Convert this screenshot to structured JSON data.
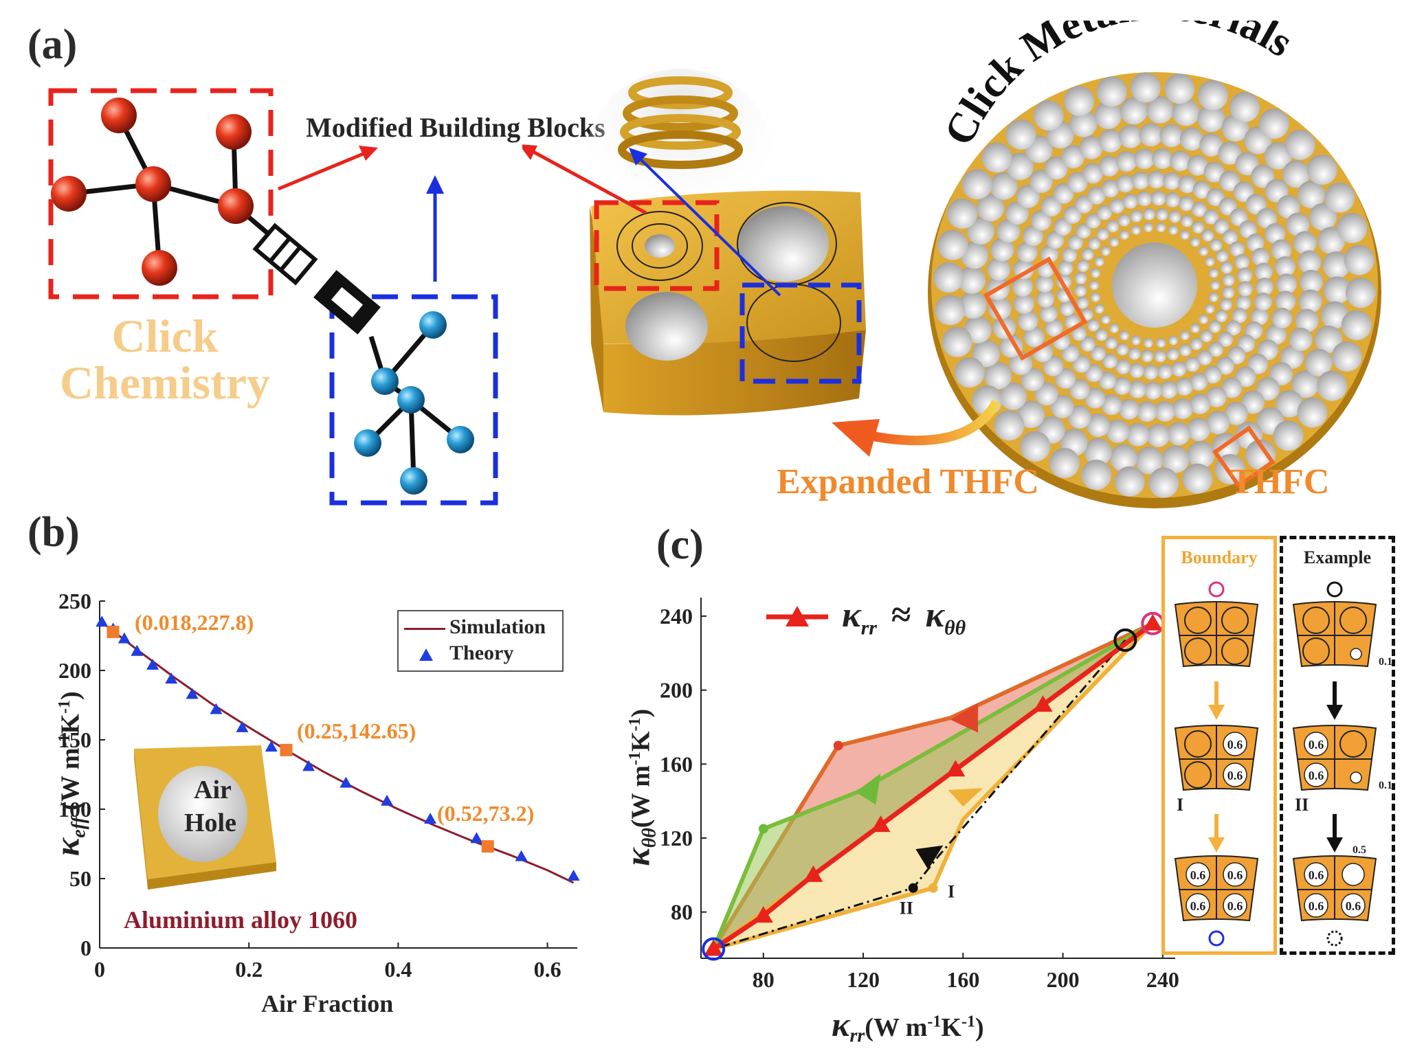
{
  "panel_a": {
    "label": "(a)",
    "click_line1": "Click",
    "click_line2": "Chemistry",
    "modified_blocks": "Modified Building Blocks",
    "click_metamaterials": "Click Metamaterials",
    "expanded_thfc": "Expanded THFC",
    "thfc": "THFC"
  },
  "panel_b": {
    "label": "(b)",
    "inset_text_1": "Air",
    "inset_text_2": "Hole",
    "material": "Aluminium alloy 1060",
    "legend_simulation": "Simulation",
    "legend_theory": "Theory",
    "ann1": "(0.018,227.8)",
    "ann2": "(0.25,142.65)",
    "ann3": "(0.52,73.2)",
    "xlabel": "Air Fraction",
    "ylabel_sym": "κ",
    "ylabel_sub": "eff",
    "ylabel_units": "(W m",
    "ylabel_exp1": "-1",
    "ylabel_k": "K",
    "ylabel_exp2": "-1",
    "ylabel_close": ")",
    "xticks": [
      "0",
      "0.2",
      "0.4",
      "0.6"
    ],
    "yticks": [
      "0",
      "50",
      "100",
      "150",
      "200",
      "250"
    ]
  },
  "panel_c": {
    "label": "(c)",
    "legend_lhs": "κ",
    "legend_lhs_sub": "rr",
    "legend_approx": "≈",
    "legend_rhs": "κ",
    "legend_rhs_sub": "θθ",
    "xlabel_sym": "κ",
    "xlabel_sub": "rr",
    "xlabel_units": "(W m",
    "xlabel_exp1": "-1",
    "xlabel_k": "K",
    "xlabel_exp2": "-1",
    "xlabel_close": ")",
    "ylabel_sym": "κ",
    "ylabel_sub": "θθ",
    "ylabel_units": "(W m",
    "ylabel_exp1": "-1",
    "ylabel_k": "K",
    "ylabel_exp2": "-1",
    "ylabel_close": ")",
    "xticks": [
      "80",
      "120",
      "160",
      "200",
      "240"
    ],
    "yticks": [
      "80",
      "120",
      "160",
      "200",
      "240"
    ],
    "marker_I": "I",
    "marker_II": "II",
    "boundary_title": "Boundary",
    "example_title": "Example",
    "cell_06": "0.6",
    "cell_01": "0.1",
    "cell_05": "0.5"
  },
  "colors": {
    "red_block": "#e8231c",
    "blue_block": "#1a2fe0",
    "gold": "#d9a62a",
    "orange": "#f08a2c",
    "sim_line": "#8c1d2e",
    "theory": "#1f3de0"
  },
  "chart_data": [
    {
      "type": "line",
      "xlabel": "Air Fraction",
      "ylabel": "κeff (W m-1K-1)",
      "xlim": [
        0,
        0.64
      ],
      "ylim": [
        0,
        250
      ],
      "series": [
        {
          "name": "Simulation",
          "kind": "line",
          "x": [
            0,
            0.05,
            0.1,
            0.15,
            0.2,
            0.25,
            0.3,
            0.35,
            0.4,
            0.45,
            0.5,
            0.55,
            0.6,
            0.635
          ],
          "y": [
            236,
            215,
            195,
            176,
            159,
            142.65,
            127,
            113,
            100,
            88,
            77,
            67,
            56,
            47
          ]
        },
        {
          "name": "Theory",
          "kind": "scatter",
          "x": [
            0.003,
            0.018,
            0.033,
            0.05,
            0.071,
            0.096,
            0.124,
            0.156,
            0.191,
            0.23,
            0.28,
            0.33,
            0.385,
            0.443,
            0.505,
            0.565,
            0.635
          ],
          "y": [
            235,
            230,
            223,
            214,
            204,
            194,
            183,
            172,
            159,
            145,
            131,
            119,
            106,
            93,
            79,
            66,
            52
          ]
        }
      ],
      "annotations": [
        {
          "x": 0.018,
          "y": 227.8,
          "text": "(0.018,227.8)"
        },
        {
          "x": 0.25,
          "y": 142.65,
          "text": "(0.25,142.65)"
        },
        {
          "x": 0.52,
          "y": 73.2,
          "text": "(0.52,73.2)"
        }
      ],
      "legend_position": "top-right"
    },
    {
      "type": "line",
      "xlabel": "κrr (W m-1K-1)",
      "ylabel": "κθθ (W m-1K-1)",
      "xlim": [
        55,
        245
      ],
      "ylim": [
        55,
        250
      ],
      "series": [
        {
          "name": "κrr ≈ κθθ",
          "kind": "line-triangles",
          "x": [
            60,
            80,
            100,
            127,
            157,
            192,
            236
          ],
          "y": [
            60,
            78,
            100,
            127,
            157,
            192,
            236
          ]
        }
      ],
      "regions": [
        {
          "color": "#e9735f",
          "points_x": [
            60,
            110,
            155,
            236,
            60
          ],
          "points_y": [
            60,
            170,
            185,
            236,
            60
          ]
        },
        {
          "color": "#9bc85a",
          "points_x": [
            60,
            80,
            118,
            236,
            60
          ],
          "points_y": [
            60,
            125,
            145,
            236,
            60
          ]
        },
        {
          "color": "#f1cf66",
          "points_x": [
            60,
            148,
            160,
            236,
            60
          ],
          "points_y": [
            60,
            93,
            130,
            236,
            60
          ]
        }
      ],
      "example_path": {
        "x": [
          225,
          150,
          140,
          60
        ],
        "y": [
          227,
          110,
          93,
          60
        ]
      },
      "point_labels": [
        {
          "x": 150,
          "y": 93,
          "text": "I"
        },
        {
          "x": 140,
          "y": 93,
          "text": "II"
        }
      ]
    }
  ]
}
